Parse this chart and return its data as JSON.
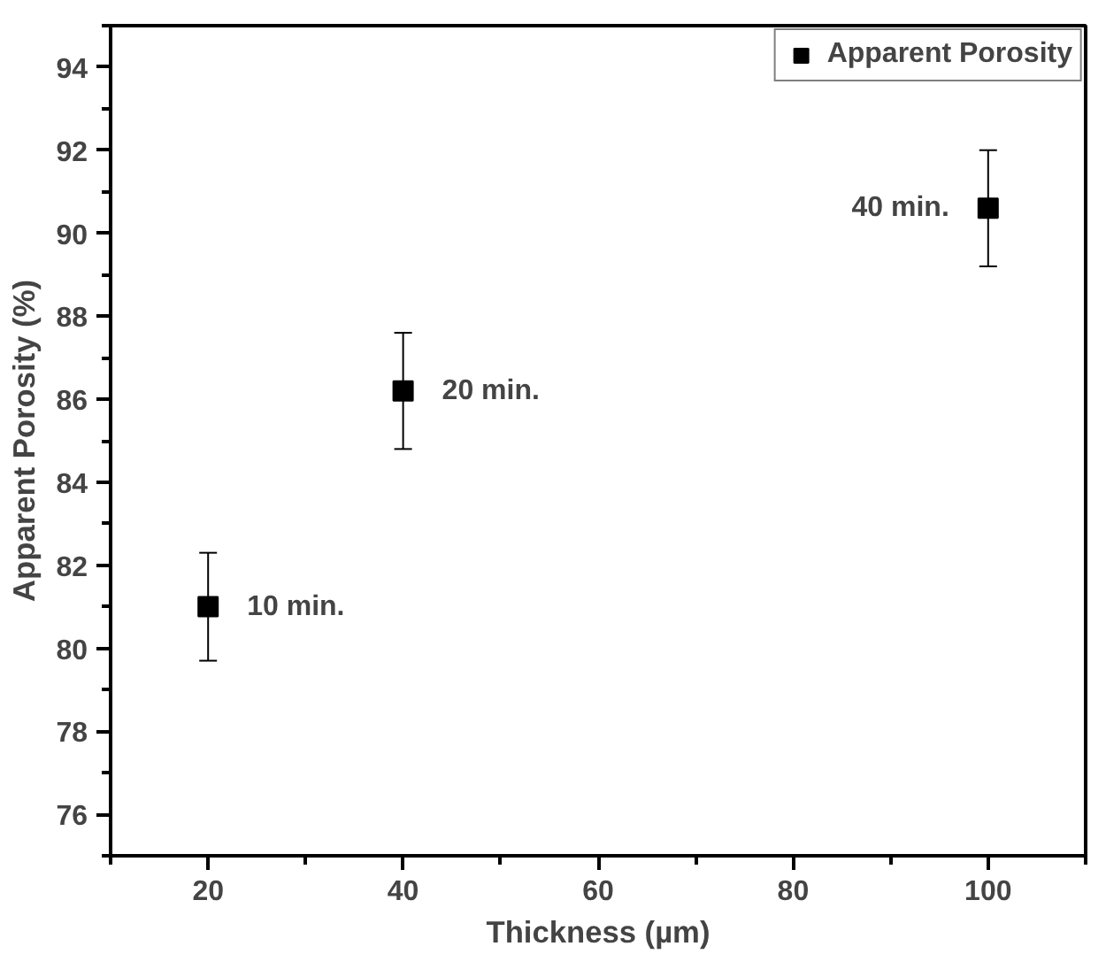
{
  "chart_data": {
    "type": "scatter",
    "xlabel": "Thickness (µm)",
    "ylabel": "Apparent Porosity (%)",
    "x": [
      20,
      40,
      100
    ],
    "series": [
      {
        "name": "Apparent Porosity",
        "color": "#000000",
        "values": [
          81.0,
          86.2,
          90.6
        ],
        "errors": [
          1.3,
          1.4,
          1.4
        ]
      }
    ],
    "xlim": [
      10,
      110
    ],
    "ylim": [
      75,
      95
    ],
    "xticks": [
      {
        "value": 10,
        "label": null
      },
      20,
      {
        "value": 30,
        "label": null
      },
      40,
      {
        "value": 50,
        "label": null
      },
      60,
      {
        "value": 70,
        "label": null
      },
      80,
      {
        "value": 90,
        "label": null
      },
      100,
      {
        "value": 110,
        "label": null
      }
    ],
    "yticks": [
      {
        "value": 75,
        "label": null
      },
      76,
      {
        "value": 77,
        "label": null
      },
      78,
      {
        "value": 79,
        "label": null
      },
      80,
      {
        "value": 81,
        "label": null
      },
      82,
      {
        "value": 83,
        "label": null
      },
      84,
      {
        "value": 85,
        "label": null
      },
      86,
      {
        "value": 87,
        "label": null
      },
      88,
      {
        "value": 89,
        "label": null
      },
      90,
      {
        "value": 91,
        "label": null
      },
      92,
      {
        "value": 93,
        "label": null
      },
      94,
      {
        "value": 95,
        "label": null
      }
    ],
    "annotations": [
      {
        "text": "10 min.",
        "x": 20,
        "y": 81.0
      },
      {
        "text": "20 min.",
        "x": 40,
        "y": 86.2
      },
      {
        "text": "40 min.",
        "x": 100,
        "y": 90.6
      }
    ],
    "marker": "square",
    "grid": false,
    "legend": "top right"
  }
}
